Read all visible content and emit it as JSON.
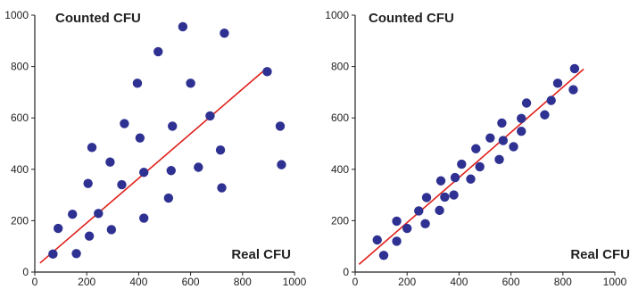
{
  "chart_data": [
    {
      "type": "scatter",
      "xlabel": "Real CFU",
      "ylabel": "Counted CFU",
      "xlim": [
        0,
        1000
      ],
      "ylim": [
        0,
        1000
      ],
      "xticks": [
        "0",
        "200",
        "400",
        "600",
        "800",
        "1000"
      ],
      "yticks": [
        "0",
        "200",
        "400",
        "600",
        "800",
        "1000"
      ],
      "grid": false,
      "marker_color": "#2E3192",
      "line_color": "#E0201B",
      "points": [
        {
          "x": 70,
          "y": 70
        },
        {
          "x": 90,
          "y": 170
        },
        {
          "x": 145,
          "y": 225
        },
        {
          "x": 160,
          "y": 72
        },
        {
          "x": 205,
          "y": 345
        },
        {
          "x": 210,
          "y": 140
        },
        {
          "x": 220,
          "y": 485
        },
        {
          "x": 245,
          "y": 228
        },
        {
          "x": 290,
          "y": 428
        },
        {
          "x": 295,
          "y": 165
        },
        {
          "x": 335,
          "y": 340
        },
        {
          "x": 345,
          "y": 578
        },
        {
          "x": 395,
          "y": 735
        },
        {
          "x": 405,
          "y": 522
        },
        {
          "x": 420,
          "y": 388
        },
        {
          "x": 420,
          "y": 210
        },
        {
          "x": 475,
          "y": 858
        },
        {
          "x": 515,
          "y": 288
        },
        {
          "x": 525,
          "y": 395
        },
        {
          "x": 530,
          "y": 568
        },
        {
          "x": 570,
          "y": 955
        },
        {
          "x": 600,
          "y": 735
        },
        {
          "x": 630,
          "y": 408
        },
        {
          "x": 675,
          "y": 608
        },
        {
          "x": 715,
          "y": 475
        },
        {
          "x": 720,
          "y": 328
        },
        {
          "x": 730,
          "y": 930
        },
        {
          "x": 895,
          "y": 780
        },
        {
          "x": 945,
          "y": 568
        },
        {
          "x": 950,
          "y": 418
        }
      ],
      "fit_line": {
        "x": [
          20,
          895
        ],
        "y": [
          35,
          795
        ]
      }
    },
    {
      "type": "scatter",
      "xlabel": "Real CFU",
      "ylabel": "Counted CFU",
      "xlim": [
        0,
        1000
      ],
      "ylim": [
        0,
        1000
      ],
      "xticks": [
        "0",
        "200",
        "400",
        "600",
        "800",
        "1000"
      ],
      "yticks": [
        "0",
        "200",
        "400",
        "600",
        "800",
        "1000"
      ],
      "grid": false,
      "marker_color": "#2E3192",
      "line_color": "#E0201B",
      "points": [
        {
          "x": 85,
          "y": 125
        },
        {
          "x": 110,
          "y": 65
        },
        {
          "x": 160,
          "y": 120
        },
        {
          "x": 160,
          "y": 198
        },
        {
          "x": 200,
          "y": 170
        },
        {
          "x": 245,
          "y": 238
        },
        {
          "x": 270,
          "y": 188
        },
        {
          "x": 275,
          "y": 290
        },
        {
          "x": 325,
          "y": 240
        },
        {
          "x": 330,
          "y": 355
        },
        {
          "x": 345,
          "y": 292
        },
        {
          "x": 380,
          "y": 300
        },
        {
          "x": 385,
          "y": 368
        },
        {
          "x": 410,
          "y": 420
        },
        {
          "x": 445,
          "y": 362
        },
        {
          "x": 465,
          "y": 480
        },
        {
          "x": 480,
          "y": 410
        },
        {
          "x": 520,
          "y": 522
        },
        {
          "x": 555,
          "y": 438
        },
        {
          "x": 565,
          "y": 580
        },
        {
          "x": 570,
          "y": 512
        },
        {
          "x": 610,
          "y": 488
        },
        {
          "x": 640,
          "y": 548
        },
        {
          "x": 640,
          "y": 598
        },
        {
          "x": 660,
          "y": 658
        },
        {
          "x": 730,
          "y": 612
        },
        {
          "x": 755,
          "y": 668
        },
        {
          "x": 780,
          "y": 735
        },
        {
          "x": 840,
          "y": 710
        },
        {
          "x": 845,
          "y": 792
        }
      ],
      "fit_line": {
        "x": [
          15,
          880
        ],
        "y": [
          30,
          790
        ]
      }
    }
  ]
}
